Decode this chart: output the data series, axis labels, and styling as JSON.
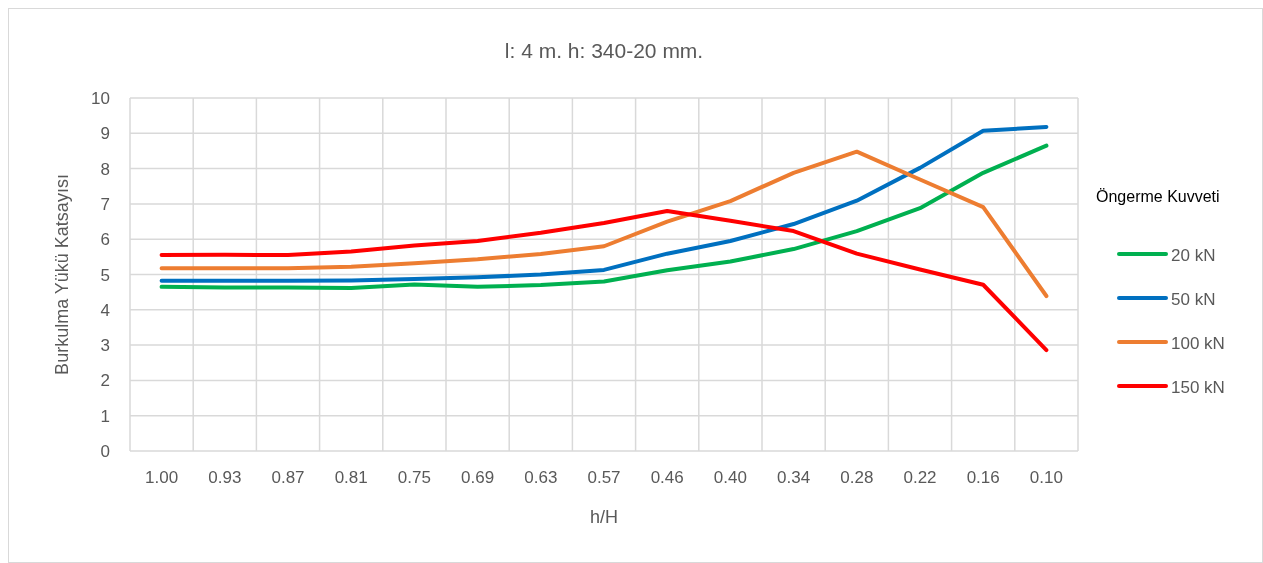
{
  "chart_data": {
    "type": "line",
    "title": "l: 4 m.  h: 340-20 mm.",
    "xlabel": "h/H",
    "ylabel": "Burkulma Yükü Katsayısı",
    "legend_title": "Öngerme Kuvveti",
    "categories": [
      "1.00",
      "0.93",
      "0.87",
      "0.81",
      "0.75",
      "0.69",
      "0.63",
      "0.57",
      "0.46",
      "0.40",
      "0.34",
      "0.28",
      "0.22",
      "0.16",
      "0.10"
    ],
    "series": [
      {
        "name": "20 kN",
        "color": "#00b050",
        "values": [
          4.65,
          4.63,
          4.63,
          4.62,
          4.72,
          4.65,
          4.7,
          4.8,
          5.12,
          5.37,
          5.72,
          6.23,
          6.88,
          7.88,
          8.65
        ]
      },
      {
        "name": "50 kN",
        "color": "#0070c0",
        "values": [
          4.82,
          4.82,
          4.82,
          4.83,
          4.87,
          4.92,
          5.0,
          5.13,
          5.59,
          5.95,
          6.43,
          7.09,
          8.02,
          9.07,
          9.18
        ]
      },
      {
        "name": "100 kN",
        "color": "#ed7d31",
        "values": [
          5.18,
          5.18,
          5.18,
          5.22,
          5.32,
          5.43,
          5.58,
          5.8,
          6.5,
          7.08,
          7.88,
          8.48,
          7.69,
          6.91,
          4.39
        ]
      },
      {
        "name": "150 kN",
        "color": "#ff0000",
        "values": [
          5.55,
          5.56,
          5.55,
          5.65,
          5.82,
          5.95,
          6.18,
          6.46,
          6.8,
          6.52,
          6.23,
          5.59,
          5.14,
          4.71,
          2.86
        ]
      }
    ],
    "ylim": [
      0,
      10
    ],
    "yticks": [
      0,
      1,
      2,
      3,
      4,
      5,
      6,
      7,
      8,
      9,
      10
    ],
    "grid": true,
    "legend": "right",
    "marker": "none",
    "line_style": "solid"
  }
}
